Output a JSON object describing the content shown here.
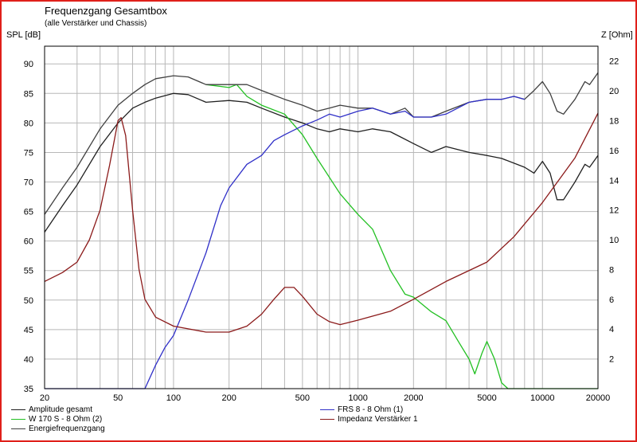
{
  "chart_data": {
    "type": "line",
    "title": "Frequenzgang Gesamtbox",
    "subtitle": "(alle Verstärker und Chassis)",
    "ylabel_left": "SPL [dB]",
    "ylabel_right": "Z [Ohm]",
    "x_scale": "log",
    "xlim": [
      20,
      20000
    ],
    "ylim_left": [
      35,
      93
    ],
    "ylim_right": [
      0,
      23
    ],
    "x_ticks": [
      20,
      50,
      100,
      200,
      500,
      1000,
      2000,
      5000,
      10000,
      20000
    ],
    "x_tick_labels": [
      "20",
      "50",
      "100",
      "200",
      "500",
      "1000",
      "2000",
      "5000",
      "10000",
      "20000"
    ],
    "y_ticks_left": [
      35,
      40,
      45,
      50,
      55,
      60,
      65,
      70,
      75,
      80,
      85,
      90
    ],
    "y_ticks_right": [
      2,
      4,
      6,
      8,
      10,
      12,
      14,
      16,
      18,
      20,
      22
    ],
    "grid": true,
    "series": [
      {
        "name": "Amplitude gesamt",
        "axis": "left",
        "color": "#202020",
        "points": [
          [
            20,
            61.5
          ],
          [
            25,
            66
          ],
          [
            30,
            69.5
          ],
          [
            40,
            76
          ],
          [
            50,
            80
          ],
          [
            60,
            82.5
          ],
          [
            70,
            83.5
          ],
          [
            80,
            84.2
          ],
          [
            100,
            85
          ],
          [
            120,
            84.8
          ],
          [
            150,
            83.5
          ],
          [
            200,
            83.8
          ],
          [
            250,
            83.5
          ],
          [
            300,
            82.5
          ],
          [
            400,
            81
          ],
          [
            500,
            80
          ],
          [
            600,
            79
          ],
          [
            700,
            78.5
          ],
          [
            800,
            79
          ],
          [
            1000,
            78.5
          ],
          [
            1200,
            79
          ],
          [
            1500,
            78.5
          ],
          [
            2000,
            76.5
          ],
          [
            2500,
            75
          ],
          [
            3000,
            76
          ],
          [
            4000,
            75
          ],
          [
            5000,
            74.5
          ],
          [
            6000,
            74
          ],
          [
            8000,
            72.5
          ],
          [
            9000,
            71.5
          ],
          [
            10000,
            73.5
          ],
          [
            11000,
            71.5
          ],
          [
            12000,
            67
          ],
          [
            13000,
            67
          ],
          [
            15000,
            70
          ],
          [
            17000,
            73
          ],
          [
            18000,
            72.5
          ],
          [
            20000,
            74.5
          ]
        ]
      },
      {
        "name": "W 170 S - 8 Ohm (2)",
        "axis": "left",
        "color": "#22c022",
        "points": [
          [
            150,
            86.5
          ],
          [
            200,
            86
          ],
          [
            220,
            86.5
          ],
          [
            250,
            84.5
          ],
          [
            300,
            83
          ],
          [
            400,
            81.5
          ],
          [
            500,
            78
          ],
          [
            600,
            74
          ],
          [
            800,
            68
          ],
          [
            1000,
            64.5
          ],
          [
            1200,
            62
          ],
          [
            1500,
            55
          ],
          [
            1800,
            51
          ],
          [
            2000,
            50.5
          ],
          [
            2500,
            48
          ],
          [
            3000,
            46.5
          ],
          [
            3500,
            43
          ],
          [
            4000,
            40
          ],
          [
            4300,
            37.5
          ],
          [
            4700,
            41
          ],
          [
            5000,
            43
          ],
          [
            5500,
            40
          ],
          [
            6000,
            36
          ],
          [
            6500,
            35
          ],
          [
            20000,
            35
          ]
        ]
      },
      {
        "name": "Energiefrequenzgang",
        "axis": "left",
        "color": "#404040",
        "points": [
          [
            20,
            64.5
          ],
          [
            25,
            69
          ],
          [
            30,
            72.5
          ],
          [
            40,
            79
          ],
          [
            50,
            83
          ],
          [
            60,
            85
          ],
          [
            70,
            86.5
          ],
          [
            80,
            87.5
          ],
          [
            100,
            88
          ],
          [
            120,
            87.8
          ],
          [
            150,
            86.5
          ],
          [
            200,
            86.5
          ],
          [
            250,
            86.5
          ],
          [
            300,
            85.5
          ],
          [
            400,
            84
          ],
          [
            500,
            83
          ],
          [
            600,
            82
          ],
          [
            700,
            82.5
          ],
          [
            800,
            83
          ],
          [
            1000,
            82.5
          ],
          [
            1200,
            82.5
          ],
          [
            1500,
            81.5
          ],
          [
            1800,
            82.5
          ],
          [
            2000,
            81
          ],
          [
            2500,
            81
          ],
          [
            3000,
            82
          ],
          [
            4000,
            83.5
          ],
          [
            5000,
            84
          ],
          [
            6000,
            84
          ],
          [
            7000,
            84.5
          ],
          [
            8000,
            84
          ],
          [
            9000,
            85.5
          ],
          [
            10000,
            87
          ],
          [
            11000,
            85
          ],
          [
            12000,
            82
          ],
          [
            13000,
            81.5
          ],
          [
            15000,
            84
          ],
          [
            17000,
            87
          ],
          [
            18000,
            86.5
          ],
          [
            20000,
            88.5
          ]
        ]
      },
      {
        "name": "FRS 8 - 8 Ohm (1)",
        "axis": "left",
        "color": "#3030c8",
        "points": [
          [
            20,
            35
          ],
          [
            70,
            35
          ],
          [
            80,
            39
          ],
          [
            90,
            42
          ],
          [
            100,
            44
          ],
          [
            120,
            50
          ],
          [
            150,
            58
          ],
          [
            180,
            66
          ],
          [
            200,
            69
          ],
          [
            250,
            73
          ],
          [
            300,
            74.5
          ],
          [
            350,
            77
          ],
          [
            400,
            78
          ],
          [
            500,
            79.5
          ],
          [
            600,
            80.5
          ],
          [
            700,
            81.5
          ],
          [
            800,
            81
          ],
          [
            1000,
            82
          ],
          [
            1200,
            82.5
          ],
          [
            1500,
            81.5
          ],
          [
            1800,
            82
          ],
          [
            2000,
            81
          ],
          [
            2500,
            81
          ],
          [
            3000,
            81.5
          ],
          [
            4000,
            83.5
          ],
          [
            5000,
            84
          ],
          [
            6000,
            84
          ],
          [
            7000,
            84.5
          ],
          [
            8000,
            84
          ]
        ]
      },
      {
        "name": "Impedanz Verstärker 1",
        "axis": "right",
        "color": "#8b1a1a",
        "points": [
          [
            20,
            7.2
          ],
          [
            25,
            7.8
          ],
          [
            30,
            8.5
          ],
          [
            35,
            10
          ],
          [
            40,
            12
          ],
          [
            45,
            15
          ],
          [
            50,
            18
          ],
          [
            52,
            18.2
          ],
          [
            55,
            17
          ],
          [
            60,
            12
          ],
          [
            65,
            8
          ],
          [
            70,
            6
          ],
          [
            80,
            4.8
          ],
          [
            100,
            4.2
          ],
          [
            150,
            3.8
          ],
          [
            200,
            3.8
          ],
          [
            250,
            4.2
          ],
          [
            300,
            5
          ],
          [
            350,
            6
          ],
          [
            400,
            6.8
          ],
          [
            450,
            6.8
          ],
          [
            500,
            6.2
          ],
          [
            600,
            5
          ],
          [
            700,
            4.5
          ],
          [
            800,
            4.3
          ],
          [
            1000,
            4.6
          ],
          [
            1500,
            5.2
          ],
          [
            2000,
            6
          ],
          [
            3000,
            7.2
          ],
          [
            5000,
            8.5
          ],
          [
            7000,
            10.2
          ],
          [
            10000,
            12.5
          ],
          [
            15000,
            15.5
          ],
          [
            20000,
            18.5
          ]
        ]
      }
    ],
    "legend": {
      "position": "bottom",
      "left": [
        {
          "label": "Amplitude gesamt",
          "color": "#202020"
        },
        {
          "label": "W 170 S - 8 Ohm (2)",
          "color": "#22c022"
        },
        {
          "label": "Energiefrequenzgang",
          "color": "#404040"
        }
      ],
      "right": [
        {
          "label": "FRS 8 - 8 Ohm (1)",
          "color": "#3030c8"
        },
        {
          "label": "Impedanz Verstärker 1",
          "color": "#8b1a1a"
        }
      ]
    }
  }
}
